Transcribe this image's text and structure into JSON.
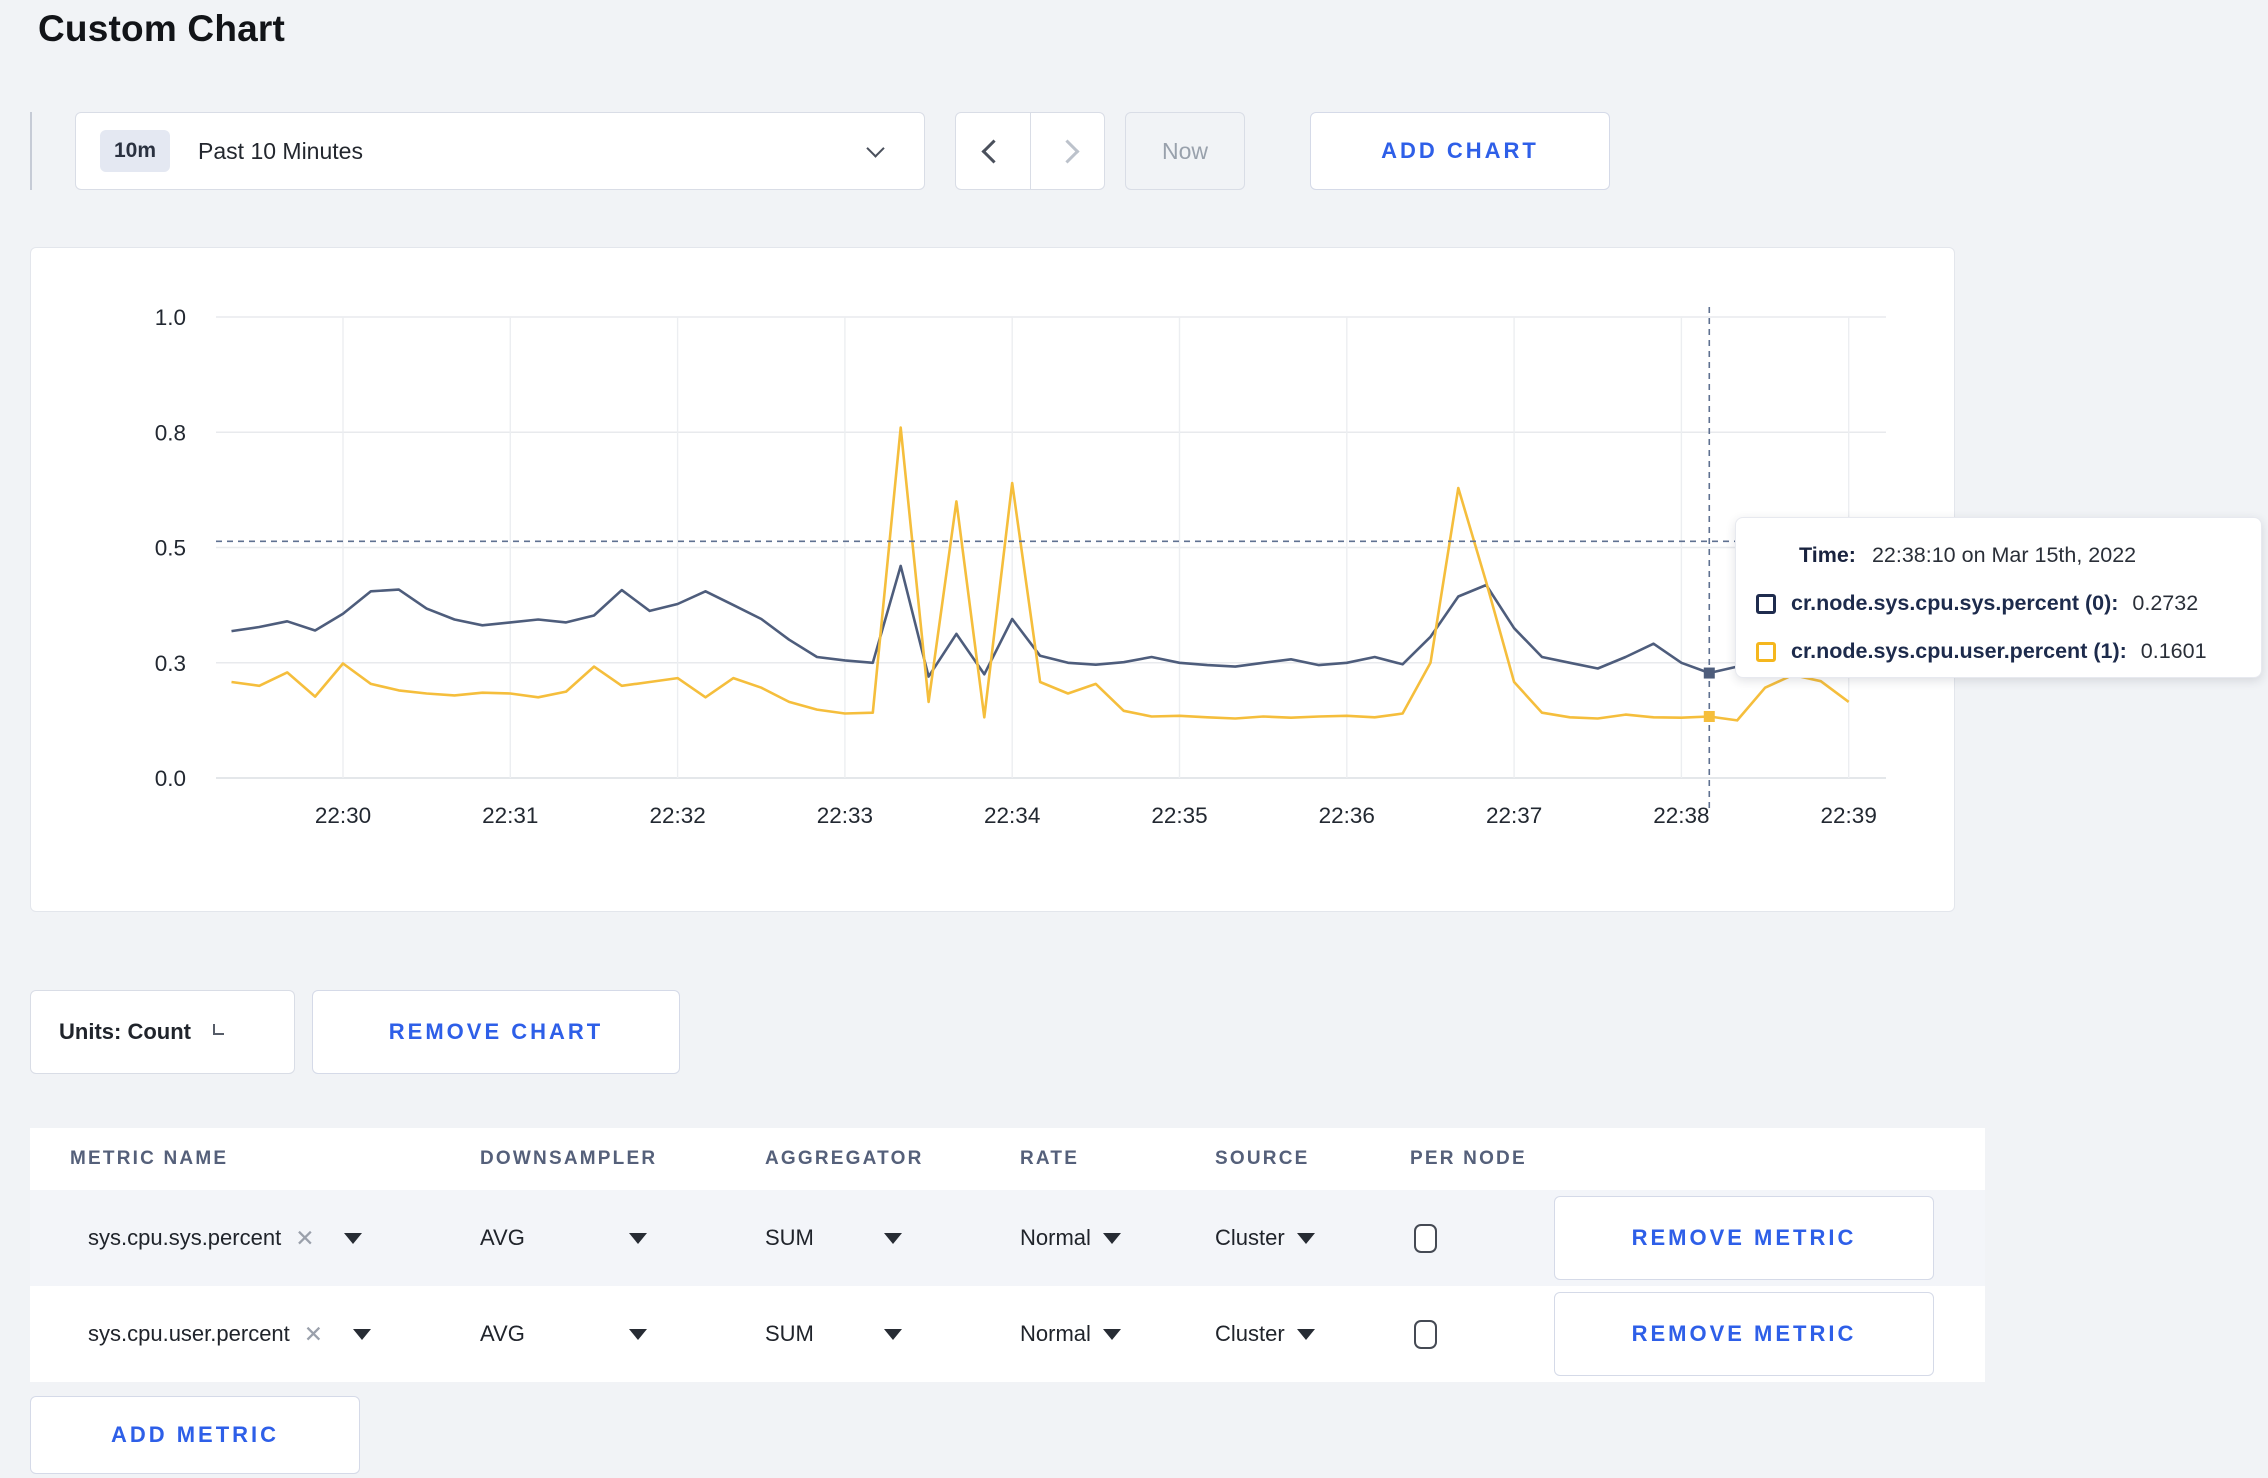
{
  "page_title": "Custom Chart",
  "icons": {
    "clear": "✕"
  },
  "toolbar": {
    "range_badge": "10m",
    "range_label": "Past 10 Minutes",
    "now_label": "Now",
    "add_chart_label": "ADD CHART"
  },
  "chart_data": {
    "type": "line",
    "title": "",
    "xlabel": "",
    "ylabel": "",
    "ylim": [
      0,
      1
    ],
    "grid": true,
    "x_start": "22:29:20",
    "x_interval_seconds": 10,
    "x_tick_labels": [
      "22:30",
      "22:31",
      "22:32",
      "22:33",
      "22:34",
      "22:35",
      "22:36",
      "22:37",
      "22:38",
      "22:39"
    ],
    "y_ticks": [
      0.0,
      0.3,
      0.5,
      0.8,
      1.0
    ],
    "y_tick_labels": [
      "0.0",
      "0.3",
      "0.5",
      "0.8",
      "1.0"
    ],
    "series": [
      {
        "name": "cr.node.sys.cpu.sys.percent",
        "color": "#4e5d7c",
        "values": [
          0.355,
          0.362,
          0.372,
          0.356,
          0.385,
          0.424,
          0.427,
          0.394,
          0.375,
          0.365,
          0.37,
          0.375,
          0.37,
          0.382,
          0.426,
          0.39,
          0.402,
          0.424,
          0.4,
          0.376,
          0.34,
          0.31,
          0.304,
          0.3,
          0.468,
          0.264,
          0.35,
          0.27,
          0.376,
          0.312,
          0.3,
          0.295,
          0.301,
          0.31,
          0.3,
          0.294,
          0.29,
          0.3,
          0.306,
          0.294,
          0.3,
          0.31,
          0.296,
          0.345,
          0.415,
          0.435,
          0.36,
          0.31,
          0.3,
          0.285,
          0.31,
          0.333,
          0.3,
          0.2732,
          0.29,
          0.3,
          0.31,
          0.3,
          0.3
        ]
      },
      {
        "name": "cr.node.sys.cpu.user.percent",
        "color": "#f5be3c",
        "values": [
          0.25,
          0.24,
          0.275,
          0.212,
          0.298,
          0.245,
          0.228,
          0.22,
          0.215,
          0.222,
          0.22,
          0.21,
          0.225,
          0.29,
          0.24,
          0.25,
          0.26,
          0.21,
          0.26,
          0.235,
          0.198,
          0.178,
          0.168,
          0.17,
          0.808,
          0.198,
          0.62,
          0.158,
          0.668,
          0.25,
          0.22,
          0.245,
          0.175,
          0.16,
          0.162,
          0.158,
          0.155,
          0.16,
          0.157,
          0.16,
          0.162,
          0.158,
          0.168,
          0.3,
          0.655,
          0.44,
          0.25,
          0.17,
          0.158,
          0.155,
          0.165,
          0.158,
          0.157,
          0.1601,
          0.15,
          0.235,
          0.268,
          0.252,
          0.198
        ]
      }
    ],
    "hover_index": 53,
    "crosshair_h_value": 0.516,
    "legend_position": "tooltip"
  },
  "tooltip": {
    "time_label": "Time:",
    "time_value": "22:38:10 on Mar 15th, 2022",
    "rows": [
      {
        "name": "cr.node.sys.cpu.sys.percent (0):",
        "value": "0.2732",
        "color": "#1f2c4e"
      },
      {
        "name": "cr.node.sys.cpu.user.percent (1):",
        "value": "0.1601",
        "color": "#f5b71e"
      }
    ]
  },
  "units_row": {
    "units_label": "Units: Count",
    "remove_chart_label": "REMOVE CHART"
  },
  "metrics_table": {
    "headers": [
      "METRIC NAME",
      "DOWNSAMPLER",
      "AGGREGATOR",
      "RATE",
      "SOURCE",
      "PER NODE"
    ],
    "rows": [
      {
        "metric_name": "sys.cpu.sys.percent",
        "downsampler": "AVG",
        "aggregator": "SUM",
        "rate": "Normal",
        "source": "Cluster",
        "per_node_checked": false,
        "remove_label": "REMOVE METRIC"
      },
      {
        "metric_name": "sys.cpu.user.percent",
        "downsampler": "AVG",
        "aggregator": "SUM",
        "rate": "Normal",
        "source": "Cluster",
        "per_node_checked": false,
        "remove_label": "REMOVE METRIC"
      }
    ],
    "add_metric_label": "ADD METRIC"
  }
}
